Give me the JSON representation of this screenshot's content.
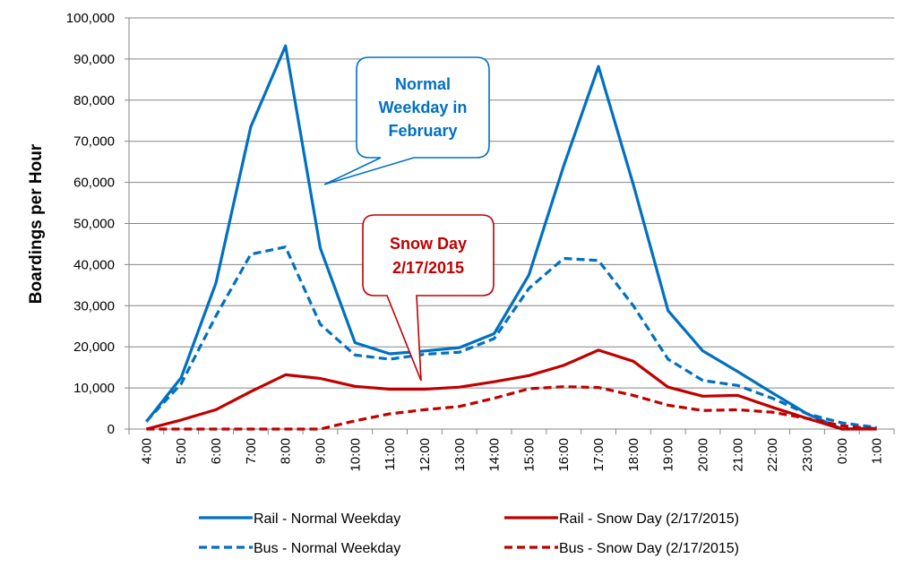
{
  "chart_data": {
    "type": "line",
    "title": "",
    "xlabel": "",
    "ylabel": "Boardings per Hour",
    "ylim": [
      0,
      100000
    ],
    "yticks": [
      "0",
      "10,000",
      "20,000",
      "30,000",
      "40,000",
      "50,000",
      "60,000",
      "70,000",
      "80,000",
      "90,000",
      "100,000"
    ],
    "categories": [
      "4:00",
      "5:00",
      "6:00",
      "7:00",
      "8:00",
      "9:00",
      "10:00",
      "11:00",
      "12:00",
      "13:00",
      "14:00",
      "15:00",
      "16:00",
      "17:00",
      "18:00",
      "19:00",
      "20:00",
      "21:00",
      "22:00",
      "23:00",
      "0:00",
      "1:00"
    ],
    "grid": "horizontal",
    "legend_position": "bottom",
    "series": [
      {
        "name": "Rail - Normal Weekday",
        "color": "#0070C0",
        "dash": "solid",
        "values": [
          1800,
          12500,
          35500,
          73500,
          93200,
          44000,
          21000,
          18300,
          19000,
          19800,
          23200,
          37500,
          64000,
          88200,
          59500,
          28800,
          19000,
          14000,
          8800,
          3700,
          0,
          200
        ]
      },
      {
        "name": "Bus - Normal Weekday",
        "color": "#0070C0",
        "dash": "dashed",
        "values": [
          1900,
          11000,
          27500,
          42500,
          44300,
          25500,
          18000,
          17000,
          18200,
          18700,
          22000,
          34200,
          41500,
          41000,
          30000,
          17000,
          11800,
          10600,
          7500,
          3700,
          1500,
          400
        ]
      },
      {
        "name": "Rail - Snow Day (2/17/2015)",
        "color": "#C00000",
        "dash": "solid",
        "values": [
          0,
          2200,
          4700,
          9100,
          13200,
          12300,
          10400,
          9700,
          9700,
          10200,
          11500,
          13000,
          15500,
          19200,
          16500,
          10200,
          8000,
          8200,
          5300,
          2600,
          0,
          0
        ]
      },
      {
        "name": "Bus - Snow Day (2/17/2015)",
        "color": "#C00000",
        "dash": "dashed",
        "values": [
          0,
          0,
          0,
          0,
          0,
          0,
          2000,
          3700,
          4700,
          5500,
          7500,
          9800,
          10300,
          10100,
          8200,
          5800,
          4500,
          4700,
          4100,
          2600,
          800,
          0
        ]
      }
    ],
    "annotations": [
      {
        "text": [
          "Normal",
          "Weekday in",
          "February"
        ],
        "color": "#0070C0"
      },
      {
        "text": [
          "Snow Day",
          "2/17/2015"
        ],
        "color": "#C00000"
      }
    ]
  }
}
